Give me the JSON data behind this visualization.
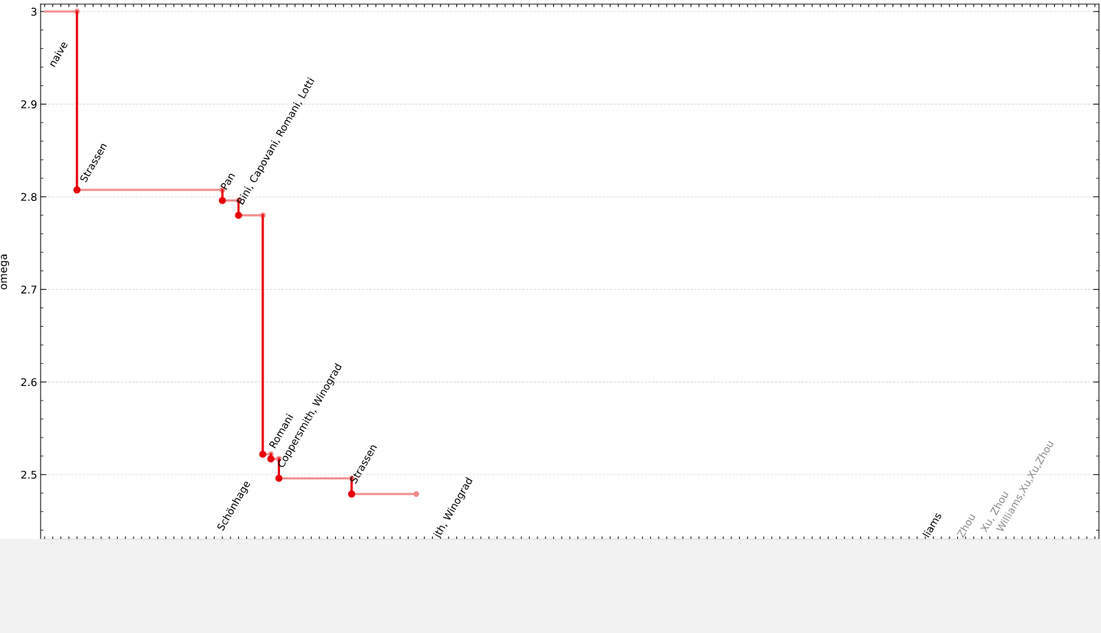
{
  "chart_data": {
    "type": "step",
    "ylabel": "omega",
    "categories": [
      null,
      null,
      null,
      null,
      null,
      null,
      null,
      null,
      null,
      null,
      null,
      null,
      null,
      null,
      null,
      null,
      null,
      null,
      null,
      null,
      null,
      null,
      null,
      null,
      null,
      null,
      null,
      null,
      null,
      null,
      null,
      null,
      null,
      null,
      null,
      null,
      null,
      null,
      null,
      null,
      null,
      null,
      null,
      null,
      null,
      null,
      null,
      null,
      null,
      null,
      null,
      null,
      null,
      null,
      null,
      null,
      null,
      null,
      null,
      null,
      null,
      null,
      null,
      null,
      null,
      null,
      null,
      null,
      null,
      null,
      null,
      null,
      null,
      null,
      null,
      null,
      null,
      null,
      null,
      null,
      null,
      null,
      null,
      null,
      null,
      null,
      null,
      null,
      null,
      null,
      null,
      null,
      null,
      null,
      null,
      null,
      null,
      null,
      null,
      null,
      null,
      null,
      null,
      null,
      null,
      null,
      null,
      null,
      null,
      null,
      null,
      null,
      null,
      null,
      null,
      null,
      null,
      null,
      null,
      null,
      null,
      null,
      null,
      null,
      null,
      null,
      null,
      null,
      null,
      null,
      null
    ],
    "series": [
      {
        "color": "#f28c8c",
        "values": [
          3,
          3,
          3,
          3,
          2.8074,
          2.8074,
          2.8074,
          2.8074,
          2.8074,
          2.8074,
          2.8074,
          2.8074,
          2.8074,
          2.8074,
          2.8074,
          2.8074,
          2.8074,
          2.8074,
          2.8074,
          2.8074,
          2.8074,
          2.8074,
          2.796,
          2.796,
          2.78,
          2.78,
          2.78,
          2.522,
          2.517,
          2.496,
          2.496,
          2.496,
          2.496,
          2.496,
          2.496,
          2.496,
          2.496,
          2.496,
          2.479,
          2.479,
          2.479,
          2.479,
          2.479,
          2.479,
          2.479,
          2.479,
          2.479,
          null,
          null,
          null,
          null,
          null,
          null,
          null,
          null,
          null,
          null,
          null,
          null,
          null,
          null,
          null,
          null,
          null,
          null,
          null,
          null,
          null,
          null,
          null,
          null,
          null,
          null,
          null,
          null,
          null,
          null,
          null,
          null,
          null,
          null,
          null,
          null,
          null,
          null,
          null,
          null,
          null,
          null,
          null,
          null,
          null,
          null,
          null,
          null,
          null,
          null,
          null,
          null,
          null,
          null,
          null,
          null,
          null,
          null,
          null,
          null,
          null,
          null,
          null,
          null,
          null,
          null,
          null,
          null,
          null,
          null,
          null,
          null,
          null,
          null,
          null,
          null,
          null,
          null,
          null,
          null,
          null,
          null,
          null,
          null
        ]
      },
      {
        "type": "scatter",
        "color": "#e8000b",
        "values": [
          null,
          null,
          null,
          null,
          2.8074,
          null,
          null,
          null,
          null,
          null,
          null,
          null,
          null,
          null,
          null,
          null,
          null,
          null,
          null,
          null,
          null,
          null,
          2.796,
          null,
          2.78,
          null,
          null,
          2.522,
          2.517,
          2.496,
          null,
          null,
          null,
          null,
          null,
          null,
          null,
          null,
          2.479,
          null,
          null,
          null,
          null,
          null,
          null,
          null,
          null,
          null,
          null,
          null,
          null,
          null,
          null,
          null,
          null,
          null,
          null,
          null,
          null,
          null,
          null,
          null,
          null,
          null,
          null,
          null,
          null,
          null,
          null,
          null,
          null,
          null,
          null,
          null,
          null,
          null,
          null,
          null,
          null,
          null,
          null,
          null,
          null,
          null,
          null,
          null,
          null,
          null,
          null,
          null,
          null,
          null,
          null,
          null,
          null,
          null,
          null,
          null,
          null,
          null,
          null,
          null,
          null,
          null,
          null,
          null,
          null,
          null,
          null,
          null,
          null,
          null,
          null,
          null,
          null,
          null,
          null,
          null,
          null,
          null,
          null,
          null,
          null,
          null,
          null,
          null,
          null,
          null,
          null,
          null,
          null
        ]
      }
    ],
    "ylim": [
      2.43,
      3.008
    ],
    "yticks": [
      2.5,
      2.6,
      2.7,
      2.8,
      2.9,
      3
    ],
    "tick_labels": "y",
    "grid": "y",
    "annotations": [
      "naive",
      "Strassen",
      "Pan",
      "Bini, Capovani, Romani, Lotti",
      "Schönhage",
      "Romani",
      "Coppersmith, Winograd",
      "Strassen",
      "ith, Winograd",
      "liams",
      "Zhou",
      "Xu, Zhou",
      "Williams,Xu,Xu,Zhou"
    ]
  }
}
